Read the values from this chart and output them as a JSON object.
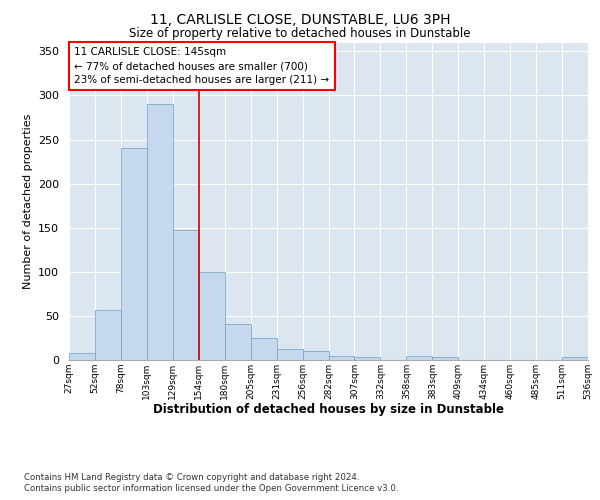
{
  "title": "11, CARLISLE CLOSE, DUNSTABLE, LU6 3PH",
  "subtitle": "Size of property relative to detached houses in Dunstable",
  "xlabel": "Distribution of detached houses by size in Dunstable",
  "ylabel": "Number of detached properties",
  "bar_color": "#c5d8ee",
  "bar_edge_color": "#6a9ec5",
  "plot_bg_color": "#dce6f1",
  "bins": [
    "27sqm",
    "52sqm",
    "78sqm",
    "103sqm",
    "129sqm",
    "154sqm",
    "180sqm",
    "205sqm",
    "231sqm",
    "256sqm",
    "282sqm",
    "307sqm",
    "332sqm",
    "358sqm",
    "383sqm",
    "409sqm",
    "434sqm",
    "460sqm",
    "485sqm",
    "511sqm",
    "536sqm"
  ],
  "values": [
    8,
    57,
    240,
    290,
    147,
    100,
    41,
    25,
    13,
    10,
    5,
    3,
    0,
    4,
    3,
    0,
    0,
    0,
    0,
    3
  ],
  "property_line_color": "#cc0000",
  "annotation_text": "11 CARLISLE CLOSE: 145sqm\n← 77% of detached houses are smaller (700)\n23% of semi-detached houses are larger (211) →",
  "ylim": [
    0,
    360
  ],
  "yticks": [
    0,
    50,
    100,
    150,
    200,
    250,
    300,
    350
  ],
  "footnote1": "Contains HM Land Registry data © Crown copyright and database right 2024.",
  "footnote2": "Contains public sector information licensed under the Open Government Licence v3.0."
}
